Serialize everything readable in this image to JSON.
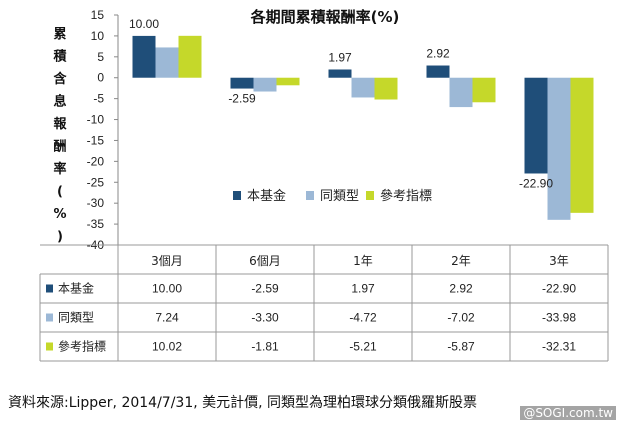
{
  "chart_data": {
    "type": "bar",
    "title": "各期間累積報酬率(%)",
    "ylabel": "累積含息報酬率(%)",
    "categories": [
      "3個月",
      "6個月",
      "1年",
      "2年",
      "3年"
    ],
    "ylim": [
      -40,
      15
    ],
    "yticks": [
      15,
      10,
      5,
      0,
      -5,
      -10,
      -15,
      -20,
      -25,
      -30,
      -35,
      -40
    ],
    "grid": false,
    "legend_position": "center-right",
    "series": [
      {
        "name": "本基金",
        "color": "#1f4e79",
        "values": [
          10.0,
          -2.59,
          1.97,
          2.92,
          -22.9
        ]
      },
      {
        "name": "同類型",
        "color": "#9cb8d6",
        "values": [
          7.24,
          -3.3,
          -4.72,
          -7.02,
          -33.98
        ]
      },
      {
        "name": "參考指標",
        "color": "#c5d82a",
        "values": [
          10.02,
          -1.81,
          -5.21,
          -5.87,
          -32.31
        ]
      }
    ],
    "data_labels": [
      {
        "series": 0,
        "category": 0,
        "text": "10.00"
      },
      {
        "series": 0,
        "category": 1,
        "text": "-2.59"
      },
      {
        "series": 0,
        "category": 2,
        "text": "1.97"
      },
      {
        "series": 0,
        "category": 3,
        "text": "2.92"
      },
      {
        "series": 0,
        "category": 4,
        "text": "-22.90"
      }
    ],
    "table": {
      "rows": [
        {
          "label": "本基金",
          "values": [
            "10.00",
            "-2.59",
            "1.97",
            "2.92",
            "-22.90"
          ]
        },
        {
          "label": "同類型",
          "values": [
            "7.24",
            "-3.30",
            "-4.72",
            "-7.02",
            "-33.98"
          ]
        },
        {
          "label": "參考指標",
          "values": [
            "10.02",
            "-1.81",
            "-5.21",
            "-5.87",
            "-32.31"
          ]
        }
      ]
    }
  },
  "footer": {
    "source": "資料來源:Lipper, 2014/7/31, 美元計價, 同類型為理柏環球分類俄羅斯股票",
    "watermark": "@SOGI.com.tw"
  }
}
